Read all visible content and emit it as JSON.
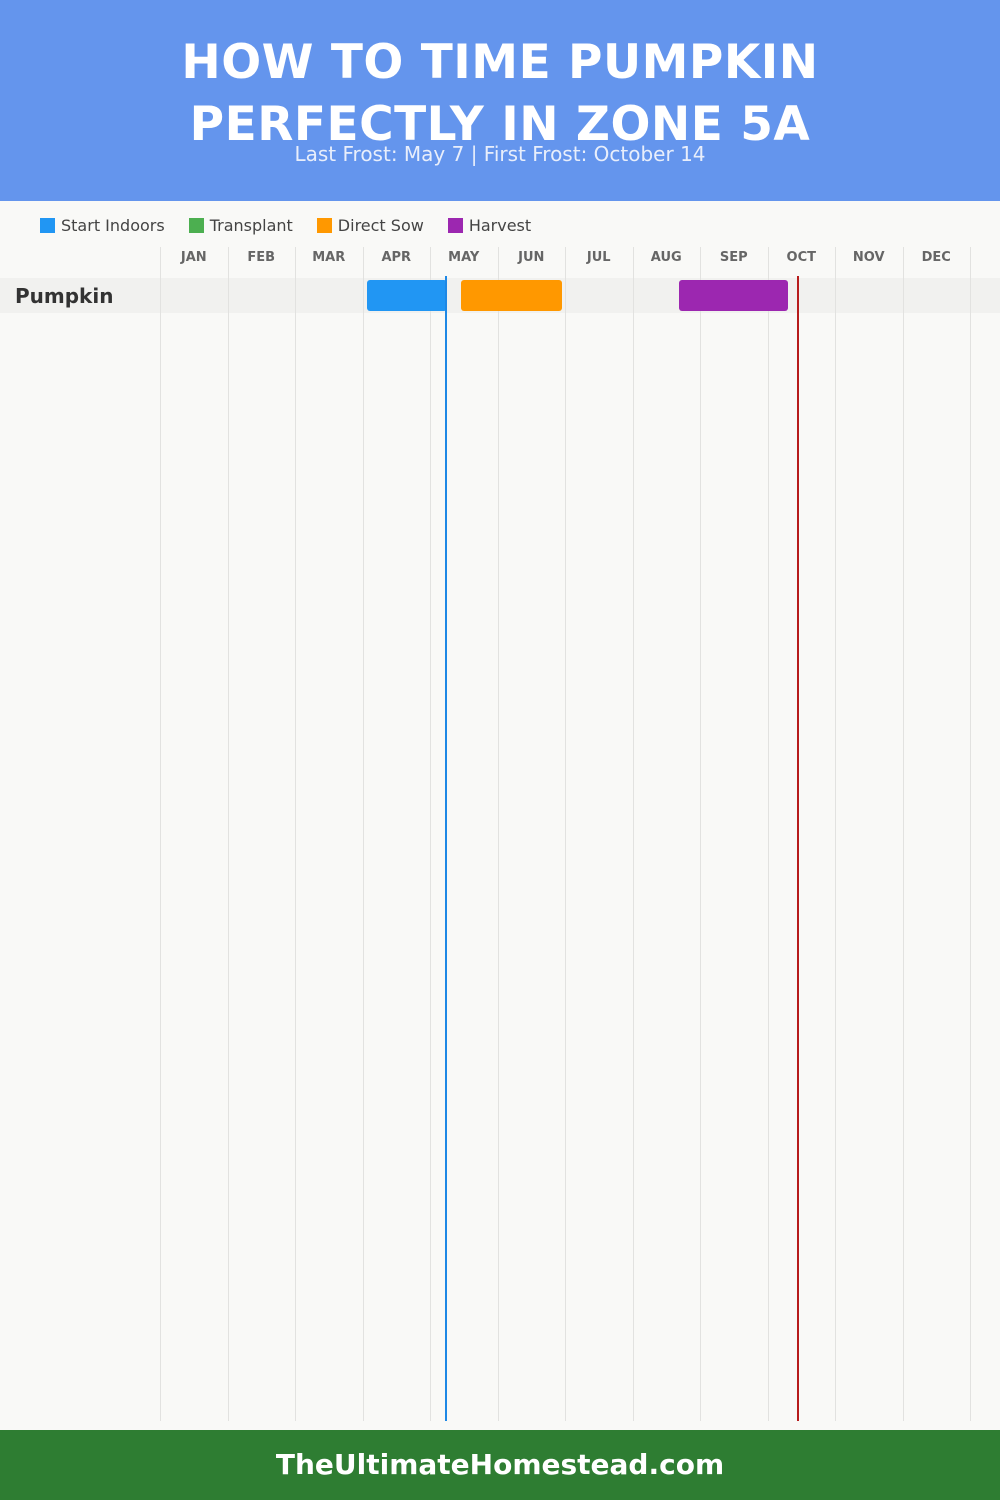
{
  "header": {
    "title_line1": "HOW TO TIME PUMPKIN",
    "title_line2": "PERFECTLY IN ZONE 5A",
    "subtitle": "Last Frost: May 7 | First Frost: October 14",
    "background_color": "#6495ed"
  },
  "legend": [
    {
      "label": "Start Indoors",
      "color": "#2196f3"
    },
    {
      "label": "Transplant",
      "color": "#4caf50"
    },
    {
      "label": "Direct Sow",
      "color": "#ff9800"
    },
    {
      "label": "Harvest",
      "color": "#9c27b0"
    }
  ],
  "footer": {
    "text": "TheUltimateHomestead.com",
    "background_color": "#2e7d32"
  },
  "chart_data": {
    "type": "gantt",
    "title": "HOW TO TIME PUMPKIN PERFECTLY IN ZONE 5A",
    "subtitle": "Last Frost: May 7 | First Frost: October 14",
    "months": [
      "JAN",
      "FEB",
      "MAR",
      "APR",
      "MAY",
      "JUN",
      "JUL",
      "AUG",
      "SEP",
      "OCT",
      "NOV",
      "DEC"
    ],
    "legend_position": "top-left",
    "grid": true,
    "rows": [
      {
        "crop": "Pumpkin",
        "tasks": [
          {
            "task": "Start Indoors",
            "start_month": 4.07,
            "end_month": 5.25,
            "color": "#2196f3"
          },
          {
            "task": "Direct Sow",
            "start_month": 5.46,
            "end_month": 6.96,
            "color": "#ff9800"
          },
          {
            "task": "Harvest",
            "start_month": 8.69,
            "end_month": 10.31,
            "color": "#9c27b0"
          }
        ]
      }
    ],
    "frost_lines": [
      {
        "event": "Last Frost",
        "date": "May 7",
        "month_position": 5.23,
        "color": "#1e88e5"
      },
      {
        "event": "First Frost",
        "date": "October 14",
        "month_position": 10.45,
        "color": "#b71c1c"
      }
    ]
  }
}
